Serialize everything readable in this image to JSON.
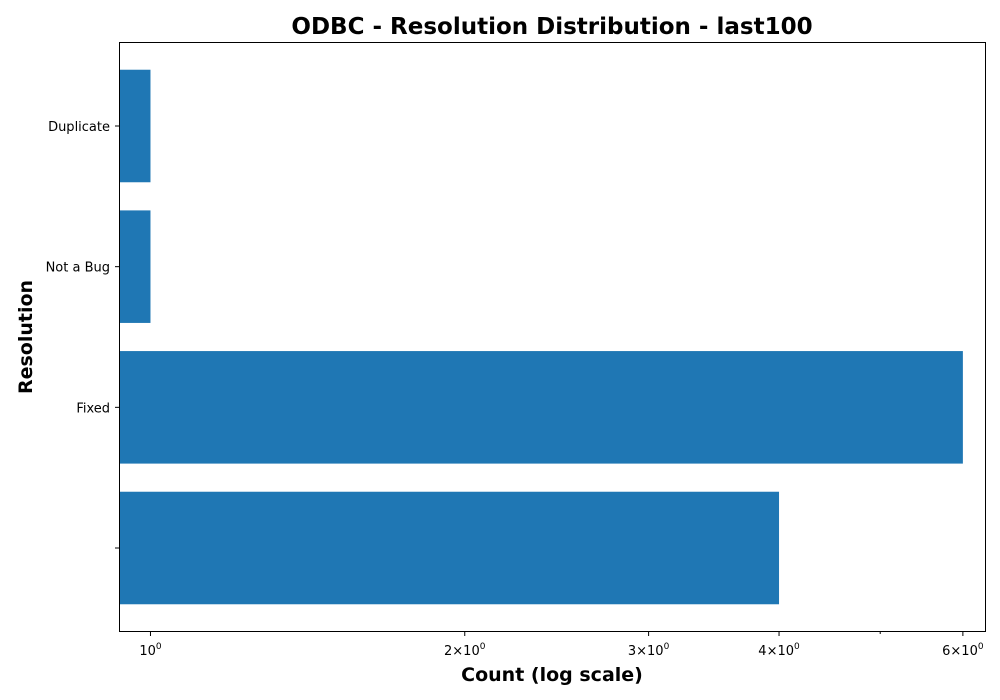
{
  "chart_data": {
    "type": "bar",
    "orientation": "horizontal",
    "title": "ODBC - Resolution Distribution - last100",
    "xlabel": "Count (log scale)",
    "ylabel": "Resolution",
    "x_scale": "log",
    "xlim": [
      0.935,
      6.3
    ],
    "categories": [
      "",
      "Fixed",
      "Not a Bug",
      "Duplicate"
    ],
    "values": [
      4,
      6,
      1,
      1
    ],
    "bar_color": "#1f77b4",
    "x_ticks": [
      {
        "value": 1,
        "base": "10",
        "exp": "0"
      },
      {
        "value": 2,
        "base": "2×10",
        "exp": "0"
      },
      {
        "value": 3,
        "base": "3×10",
        "exp": "0"
      },
      {
        "value": 4,
        "base": "4×10",
        "exp": "0"
      },
      {
        "value": 6,
        "base": "6×10",
        "exp": "0"
      }
    ],
    "x_minor_ticks": [
      5
    ],
    "grid": false,
    "legend": "none"
  }
}
